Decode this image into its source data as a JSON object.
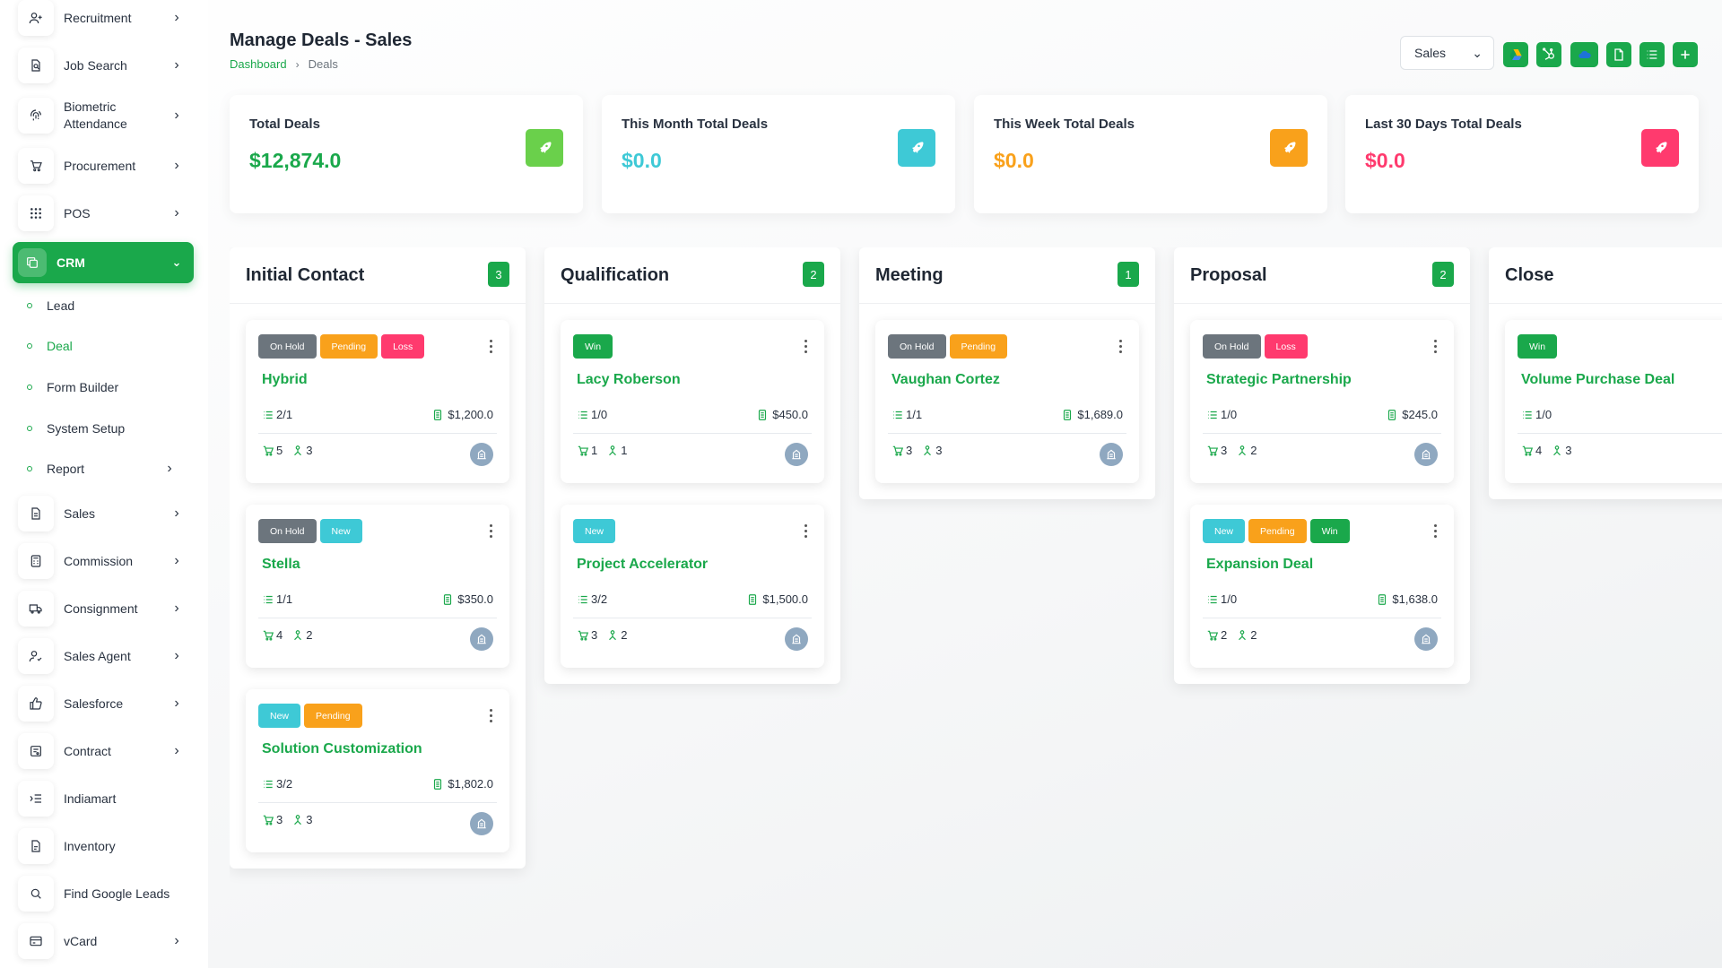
{
  "sidebar": {
    "items": [
      {
        "label": "Recruitment",
        "icon": "user-plus-icon"
      },
      {
        "label": "Job Search",
        "icon": "file-search-icon"
      },
      {
        "label": "Biometric Attendance",
        "icon": "fingerprint-icon"
      },
      {
        "label": "Procurement",
        "icon": "cart-icon"
      },
      {
        "label": "POS",
        "icon": "grid-icon"
      },
      {
        "label": "CRM",
        "icon": "layers-icon"
      },
      {
        "label": "Sales",
        "icon": "file-icon"
      },
      {
        "label": "Commission",
        "icon": "calculator-icon"
      },
      {
        "label": "Consignment",
        "icon": "truck-icon"
      },
      {
        "label": "Sales Agent",
        "icon": "user-check-icon"
      },
      {
        "label": "Salesforce",
        "icon": "thumbs-up-icon"
      },
      {
        "label": "Contract",
        "icon": "contract-icon"
      },
      {
        "label": "Indiamart",
        "icon": "list-indent-icon"
      },
      {
        "label": "Inventory",
        "icon": "file-text-icon"
      },
      {
        "label": "Find Google Leads",
        "icon": "search-icon"
      },
      {
        "label": "vCard",
        "icon": "id-card-icon"
      }
    ],
    "crm_sub": [
      "Lead",
      "Deal",
      "Form Builder",
      "System Setup",
      "Report"
    ]
  },
  "header": {
    "title": "Manage Deals - Sales",
    "breadcrumb_home": "Dashboard",
    "breadcrumb_current": "Deals",
    "pipeline_value": "Sales"
  },
  "stats": [
    {
      "label": "Total Deals",
      "value": "$12,874.0",
      "color": "#1aa84b",
      "icon_bg": "#6ad04b"
    },
    {
      "label": "This Month Total Deals",
      "value": "$0.0",
      "color": "#3ec9d6",
      "icon_bg": "#3ec9d6"
    },
    {
      "label": "This Week Total Deals",
      "value": "$0.0",
      "color": "#f9a11b",
      "icon_bg": "#f9a11b"
    },
    {
      "label": "Last 30 Days Total Deals",
      "value": "$0.0",
      "color": "#ff3a6e",
      "icon_bg": "#ff3a6e"
    }
  ],
  "columns": [
    {
      "title": "Initial Contact",
      "count": "3",
      "deals": [
        {
          "badges": [
            [
              "On Hold",
              "onhold"
            ],
            [
              "Pending",
              "pending"
            ],
            [
              "Loss",
              "loss"
            ]
          ],
          "name": "Hybrid",
          "tasks": "2/1",
          "price": "$1,200.0",
          "products": "5",
          "users": "3"
        },
        {
          "badges": [
            [
              "On Hold",
              "onhold"
            ],
            [
              "New",
              "new"
            ]
          ],
          "name": "Stella",
          "tasks": "1/1",
          "price": "$350.0",
          "products": "4",
          "users": "2"
        },
        {
          "badges": [
            [
              "New",
              "new"
            ],
            [
              "Pending",
              "pending"
            ]
          ],
          "name": "Solution Customization",
          "tasks": "3/2",
          "price": "$1,802.0",
          "products": "3",
          "users": "3"
        }
      ]
    },
    {
      "title": "Qualification",
      "count": "2",
      "deals": [
        {
          "badges": [
            [
              "Win",
              "win"
            ]
          ],
          "name": "Lacy Roberson",
          "tasks": "1/0",
          "price": "$450.0",
          "products": "1",
          "users": "1"
        },
        {
          "badges": [
            [
              "New",
              "new"
            ]
          ],
          "name": "Project Accelerator",
          "tasks": "3/2",
          "price": "$1,500.0",
          "products": "3",
          "users": "2"
        }
      ]
    },
    {
      "title": "Meeting",
      "count": "1",
      "deals": [
        {
          "badges": [
            [
              "On Hold",
              "onhold"
            ],
            [
              "Pending",
              "pending"
            ]
          ],
          "name": "Vaughan Cortez",
          "tasks": "1/1",
          "price": "$1,689.0",
          "products": "3",
          "users": "3"
        }
      ]
    },
    {
      "title": "Proposal",
      "count": "2",
      "deals": [
        {
          "badges": [
            [
              "On Hold",
              "onhold"
            ],
            [
              "Loss",
              "loss"
            ]
          ],
          "name": "Strategic Partnership",
          "tasks": "1/0",
          "price": "$245.0",
          "products": "3",
          "users": "2"
        },
        {
          "badges": [
            [
              "New",
              "new"
            ],
            [
              "Pending",
              "pending"
            ],
            [
              "Win",
              "win"
            ]
          ],
          "name": "Expansion Deal",
          "tasks": "1/0",
          "price": "$1,638.0",
          "products": "2",
          "users": "2"
        }
      ]
    },
    {
      "title": "Close",
      "count": "",
      "deals": [
        {
          "badges": [
            [
              "Win",
              "win"
            ]
          ],
          "name": "Volume Purchase Deal",
          "tasks": "1/0",
          "price": "",
          "products": "4",
          "users": "3"
        }
      ]
    }
  ],
  "colors": {
    "accent": "#1aa84b",
    "avatar": "#8fa8c0"
  }
}
